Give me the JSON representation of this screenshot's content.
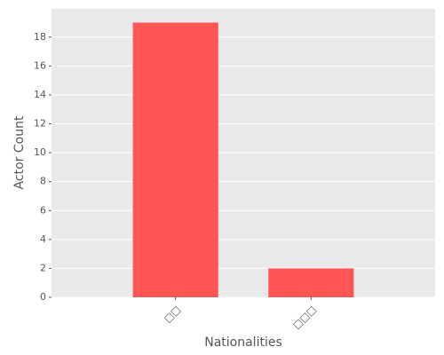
{
  "chart_data": {
    "type": "bar",
    "x_label": "Nationalities",
    "y_label": "Actor Count",
    "categories": [
      "□□",
      "□□□"
    ],
    "values": [
      19,
      2
    ],
    "color": "#ff5555",
    "ylim": [
      0,
      19.95
    ],
    "yticks": [
      0,
      2,
      4,
      6,
      8,
      10,
      12,
      14,
      16,
      18
    ],
    "grid": true
  }
}
